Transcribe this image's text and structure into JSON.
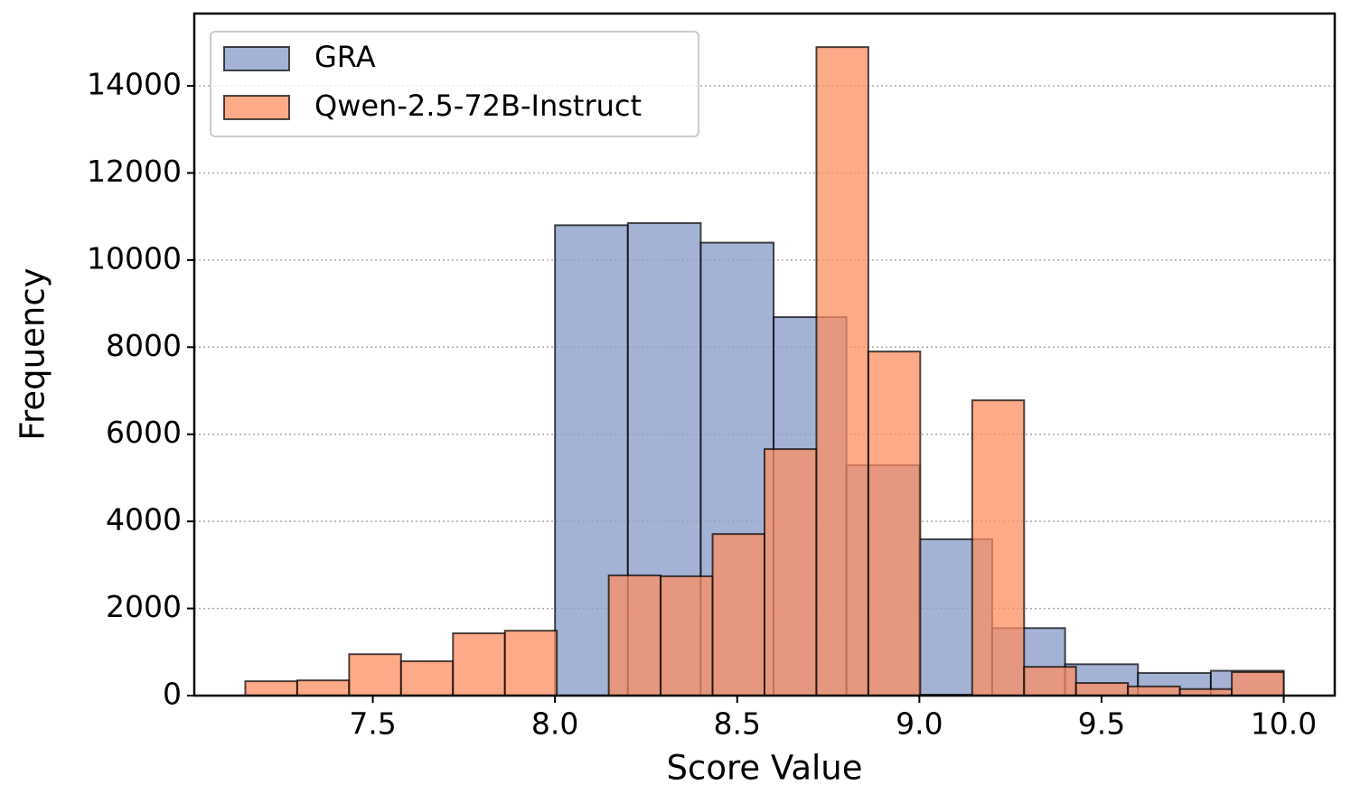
{
  "chart_data": {
    "type": "histogram",
    "xlabel": "Score Value",
    "ylabel": "Frequency",
    "xlim": [
      7.01,
      10.14
    ],
    "ylim": [
      0,
      15660
    ],
    "xticks": [
      7.5,
      {
        "value": 8,
        "label": "8.0"
      },
      8.5,
      {
        "value": 9,
        "label": "9.0"
      },
      9.5,
      {
        "value": 10,
        "label": "10.0"
      }
    ],
    "yticks": [
      0,
      2000,
      4000,
      6000,
      8000,
      10000,
      12000,
      14000
    ],
    "grid": true,
    "legend": "upper left",
    "series": [
      {
        "name": "GRA",
        "color": "#8da0cb",
        "bins": [
          8.0,
          8.2,
          8.4,
          8.6,
          8.8,
          9.0,
          9.2,
          9.4,
          9.6,
          9.8,
          10.0
        ],
        "values": [
          10800,
          10850,
          10400,
          8690,
          5290,
          3590,
          1550,
          720,
          520,
          570
        ]
      },
      {
        "name": "Qwen-2.5-72B-Instruct",
        "color": "#fc8d62",
        "bins": [
          7.15,
          7.2925,
          7.435,
          7.5775,
          7.72,
          7.8625,
          8.005,
          8.1475,
          8.29,
          8.4325,
          8.575,
          8.7175,
          8.86,
          9.0025,
          9.145,
          9.2875,
          9.43,
          9.5725,
          9.715,
          9.8575,
          10.0
        ],
        "values": [
          330,
          350,
          950,
          790,
          1430,
          1490,
          0,
          2760,
          2740,
          3710,
          5660,
          14890,
          7900,
          20,
          6780,
          660,
          290,
          210,
          150,
          540
        ]
      }
    ]
  }
}
